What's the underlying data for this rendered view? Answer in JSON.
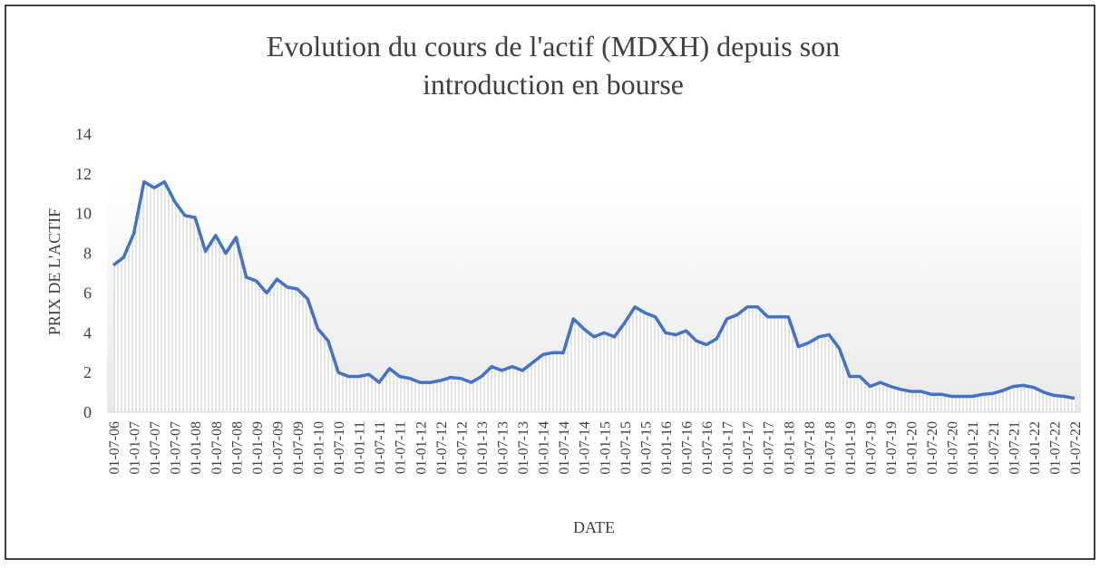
{
  "chart_data": {
    "type": "line",
    "title": [
      "Evolution du cours de l'actif (MDXH) depuis son",
      "introduction en bourse"
    ],
    "x_label": "DATE",
    "y_label": "PRIX DE L'ACTIF",
    "categories": [
      "01-07-06",
      null,
      "01-01-07",
      null,
      "01-07-07",
      null,
      "01-07-07",
      null,
      "01-01-08",
      null,
      "01-07-08",
      null,
      "01-07-08",
      null,
      "01-01-09",
      null,
      "01-07-09",
      null,
      "01-07-09",
      null,
      "01-01-10",
      null,
      "01-07-10",
      null,
      "01-01-11",
      null,
      "01-07-11",
      null,
      "01-07-11",
      null,
      "01-01-12",
      null,
      "01-07-12",
      null,
      "01-07-12",
      null,
      "01-01-13",
      null,
      "01-07-13",
      null,
      "01-07-13",
      null,
      "01-01-14",
      null,
      "01-07-14",
      null,
      "01-07-14",
      null,
      "01-01-15",
      null,
      "01-07-15",
      null,
      "01-07-15",
      null,
      "01-01-16",
      null,
      "01-07-16",
      null,
      "01-07-16",
      null,
      "01-01-17",
      null,
      "01-07-17",
      null,
      "01-07-17",
      null,
      "01-01-18",
      null,
      "01-07-18",
      null,
      "01-07-18",
      null,
      "01-01-19",
      null,
      "01-07-19",
      null,
      "01-07-19",
      null,
      "01-01-20",
      null,
      "01-07-20",
      null,
      "01-07-20",
      null,
      "01-01-21",
      null,
      "01-07-21",
      null,
      "01-07-21",
      null,
      "01-01-22",
      null,
      "01-07-22",
      null,
      "01-07-22"
    ],
    "series": [
      {
        "color": "#4472c4",
        "values": [
          7.4,
          7.8,
          9.0,
          11.6,
          11.3,
          11.6,
          10.6,
          9.9,
          9.8,
          8.1,
          8.9,
          8.0,
          8.8,
          6.8,
          6.6,
          6.0,
          6.7,
          6.3,
          6.2,
          5.7,
          4.2,
          3.6,
          2.0,
          1.8,
          1.8,
          1.9,
          1.5,
          2.2,
          1.8,
          1.7,
          1.5,
          1.5,
          1.6,
          1.75,
          1.7,
          1.5,
          1.8,
          2.3,
          2.1,
          2.3,
          2.1,
          2.5,
          2.9,
          3.0,
          3.0,
          4.7,
          4.2,
          3.8,
          4.0,
          3.8,
          4.5,
          5.3,
          5.0,
          4.8,
          4.0,
          3.9,
          4.1,
          3.6,
          3.4,
          3.7,
          4.7,
          4.9,
          5.3,
          5.3,
          4.8,
          4.8,
          4.8,
          3.3,
          3.5,
          3.8,
          3.9,
          3.2,
          1.8,
          1.8,
          1.3,
          1.5,
          1.3,
          1.15,
          1.05,
          1.05,
          0.9,
          0.9,
          0.8,
          0.8,
          0.8,
          0.9,
          0.95,
          1.1,
          1.3,
          1.35,
          1.25,
          1.0,
          0.85,
          0.8,
          0.7
        ]
      }
    ],
    "ylim": [
      0,
      14
    ],
    "yticks": [
      0,
      2,
      4,
      6,
      8,
      10,
      12,
      14
    ]
  }
}
